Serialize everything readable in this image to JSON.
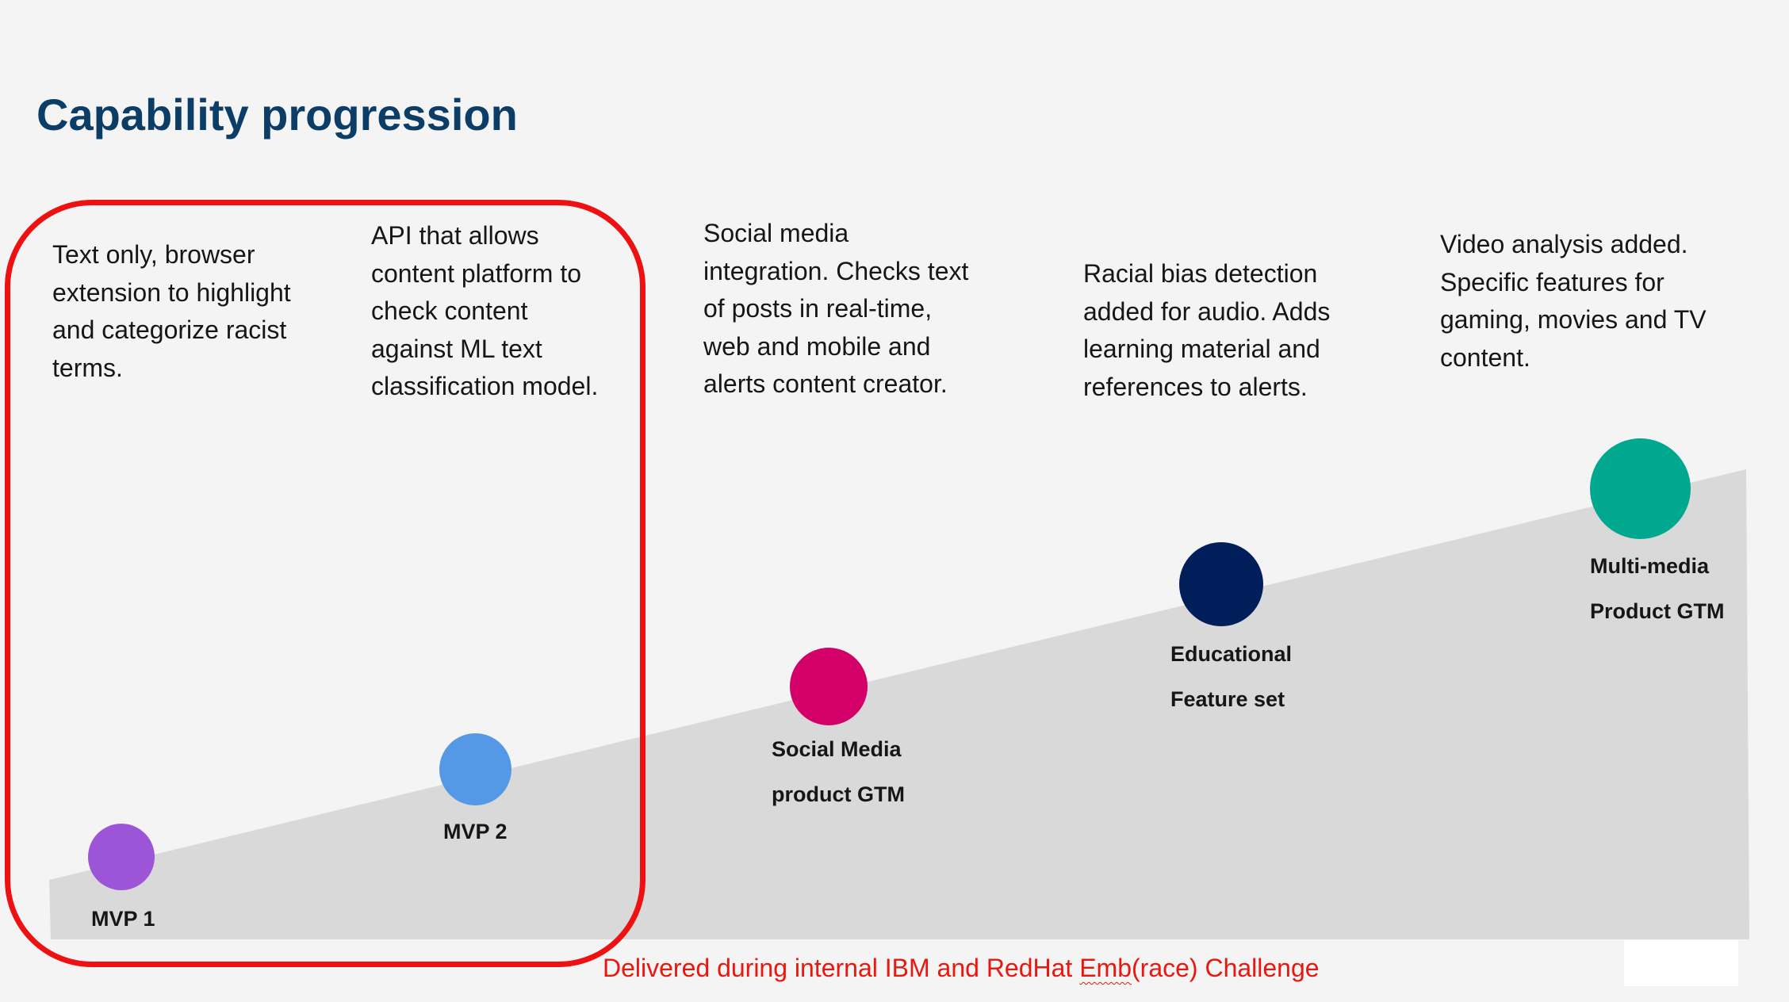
{
  "slide": {
    "title": "Capability progression",
    "stages": [
      {
        "label": "MVP 1",
        "description": "Text only, browser\nextension to highlight\nand categorize racist\nterms.",
        "color": "#9b55d6"
      },
      {
        "label": "MVP 2",
        "description": "API that allows\ncontent platform to\ncheck content\nagainst ML text\nclassification model.",
        "color": "#5599e6"
      },
      {
        "label": "Social Media\nproduct GTM",
        "description": "Social media\nintegration. Checks text\nof posts in real-time,\nweb and mobile and\nalerts content creator.",
        "color": "#d4006a"
      },
      {
        "label": "Educational\nFeature set",
        "description": "Racial bias detection\nadded for audio. Adds\nlearning material and\nreferences to alerts.",
        "color": "#001e5a"
      },
      {
        "label": "Multi-media\nProduct GTM",
        "description": "Video analysis added.\nSpecific features for\ngaming, movies and TV\ncontent.",
        "color": "#00a890"
      }
    ],
    "footnote_pre": "Delivered during internal IBM and  RedHat ",
    "footnote_wavy": "Emb",
    "footnote_post": "(race) Challenge",
    "highlight_color": "#ee1111",
    "ramp_color": "#d9d9d9",
    "title_color": "#0b3d66"
  }
}
